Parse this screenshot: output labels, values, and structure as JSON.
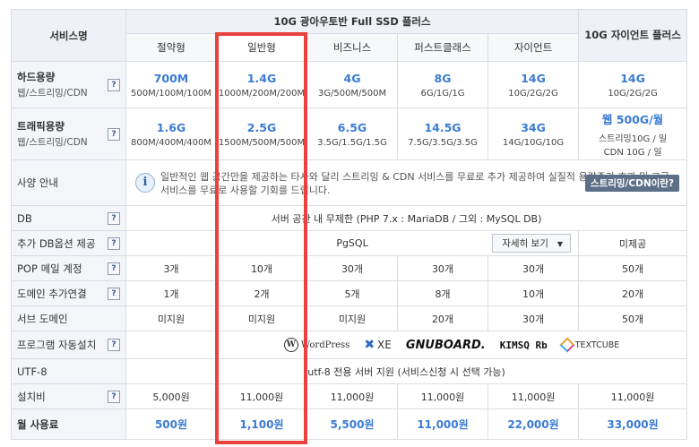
{
  "header": {
    "service_name": "서비스명",
    "group_title": "10G 광아우토반 Full SSD 플러스",
    "giant_plus": "10G 자이언트 플러스",
    "plans": [
      "절약형",
      "일반형",
      "비즈니스",
      "퍼스트클래스",
      "자이언트"
    ]
  },
  "rows": {
    "disk": {
      "label": "하드용량",
      "sub": "웹/스트리밍/CDN",
      "values": [
        {
          "big": "700M",
          "small": "500M/100M/100M"
        },
        {
          "big": "1.4G",
          "small": "1000M/200M/200M"
        },
        {
          "big": "4G",
          "small": "3G/500M/500M"
        },
        {
          "big": "8G",
          "small": "6G/1G/1G"
        },
        {
          "big": "14G",
          "small": "10G/2G/2G"
        },
        {
          "big": "14G",
          "small": "10G/2G/2G"
        }
      ]
    },
    "traffic": {
      "label": "트래픽용량",
      "sub": "웹/스트리밍/CDN",
      "values": [
        {
          "big": "1.6G",
          "small": "800M/400M/400M"
        },
        {
          "big": "2.5G",
          "small": "1500M/500M/500M"
        },
        {
          "big": "6.5G",
          "small": "3.5G/1.5G/1.5G"
        },
        {
          "big": "14.5G",
          "small": "7.5G/3.5G/3.5G"
        },
        {
          "big": "34G",
          "small": "14G/10G/10G"
        },
        {
          "big": "웹 500G/월",
          "small": "스트리밍10G / 일",
          "small2": "CDN 10G / 일"
        }
      ]
    },
    "spec": {
      "label": "사양 안내",
      "notice": "일반적인 웹 공간만을 제공하는 타사와 달리 스트리밍 & CDN 서비스를 무료로 추가 제공하여 실질적 용량증가 효과 및 고급 서비스를 무료로 사용할 기회를 드립니다.",
      "button": "스트리밍/CDN이란?"
    },
    "db": {
      "label": "DB",
      "value": "서버 공간 내 무제한 (PHP 7.x : MariaDB / 그외 : MySQL DB)"
    },
    "db_option": {
      "label": "추가 DB옵션 제공",
      "value": "PgSQL",
      "dropdown": "자세히 보기",
      "giant": "미제공"
    },
    "pop": {
      "label": "POP 메일 계정",
      "values": [
        "3개",
        "10개",
        "30개",
        "30개",
        "30개",
        "50개"
      ]
    },
    "domain_add": {
      "label": "도메인 추가연결",
      "values": [
        "1개",
        "2개",
        "5개",
        "8개",
        "10개",
        "20개"
      ]
    },
    "subdomain": {
      "label": "서브 도메인",
      "values": [
        "미지원",
        "미지원",
        "미지원",
        "20개",
        "30개",
        "50개"
      ]
    },
    "auto_install": {
      "label": "프로그램 자동설치",
      "logos": [
        "WordPress",
        "XE",
        "GNUBOARD.",
        "KIMSQ Rb",
        "TEXTCUBE"
      ]
    },
    "utf8": {
      "label": "UTF-8",
      "value": "utf-8 전용 서버 지원 (서비스신청 시 선택 가능)"
    },
    "setup": {
      "label": "설치비",
      "values": [
        "5,000원",
        "11,000원",
        "11,000원",
        "11,000원",
        "11,000원",
        "11,000원"
      ]
    },
    "monthly": {
      "label": "월 사용료",
      "values": [
        "500원",
        "1,100원",
        "5,500원",
        "11,000원",
        "22,000원",
        "33,000원"
      ]
    }
  },
  "help_icon": "?",
  "info_icon": "i",
  "colors": {
    "accent": "#3a7bd5",
    "highlight_border": "#e8423f",
    "header_bg": "#eef1f5"
  }
}
